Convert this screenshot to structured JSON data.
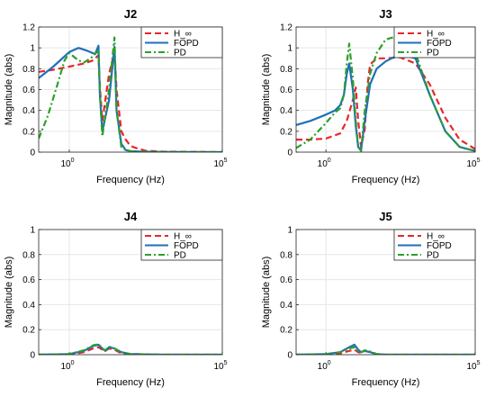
{
  "chart_data": [
    {
      "type": "line",
      "title": "J2",
      "xlabel": "Frequency  (Hz)",
      "ylabel": "Magnitude (abs)",
      "x_scale": "log",
      "xlim": [
        0.1,
        100000
      ],
      "ylim": [
        0,
        1.2
      ],
      "yticks": [
        "0",
        "0.2",
        "0.4",
        "0.6",
        "0.8",
        "1",
        "1.2"
      ],
      "xticks": [
        {
          "base": "10",
          "exp": "0",
          "value": 1
        },
        {
          "base": "10",
          "exp": "5",
          "value": 100000
        }
      ],
      "grid": true,
      "legend_position": "top-right",
      "series": [
        {
          "name": "H_∞",
          "color": "#e8262a",
          "dash": "dash",
          "x": [
            0.1,
            0.3,
            1,
            3,
            6,
            9,
            10,
            12,
            20,
            30,
            35,
            50,
            70,
            100,
            150,
            200,
            300,
            1000,
            100000
          ],
          "y": [
            0.77,
            0.79,
            0.82,
            0.85,
            0.88,
            0.93,
            0.62,
            0.3,
            0.75,
            0.96,
            0.6,
            0.2,
            0.12,
            0.06,
            0.04,
            0.03,
            0.015,
            0.005,
            0.0
          ]
        },
        {
          "name": "FOPD",
          "color": "#1f6fba",
          "dash": "solid",
          "x": [
            0.1,
            0.3,
            1,
            2,
            4,
            7,
            9,
            10,
            12,
            20,
            30,
            35,
            50,
            70,
            100,
            200,
            1000,
            100000
          ],
          "y": [
            0.71,
            0.82,
            0.96,
            1.0,
            0.97,
            0.94,
            1.02,
            0.55,
            0.2,
            0.5,
            1.01,
            0.4,
            0.08,
            0.02,
            0.01,
            0.005,
            0.001,
            0.0
          ]
        },
        {
          "name": "PD",
          "color": "#2aa02a",
          "dash": "dashdot",
          "x": [
            0.1,
            0.2,
            0.4,
            0.7,
            1,
            2,
            3,
            5,
            8,
            9,
            10,
            12,
            20,
            30,
            35,
            50,
            70,
            100,
            200,
            1000,
            100000
          ],
          "y": [
            0.13,
            0.35,
            0.64,
            0.88,
            0.95,
            0.88,
            0.86,
            0.9,
            0.96,
            0.98,
            0.55,
            0.15,
            0.6,
            1.1,
            0.4,
            0.05,
            0.02,
            0.01,
            0.003,
            0.001,
            0.0
          ]
        }
      ]
    },
    {
      "type": "line",
      "title": "J3",
      "xlabel": "Frequency  (Hz)",
      "ylabel": "Magnitude (abs)",
      "x_scale": "log",
      "xlim": [
        0.1,
        100000
      ],
      "ylim": [
        0,
        1.2
      ],
      "yticks": [
        "0",
        "0.2",
        "0.4",
        "0.6",
        "0.8",
        "1",
        "1.2"
      ],
      "xticks": [
        {
          "base": "10",
          "exp": "0",
          "value": 1
        },
        {
          "base": "10",
          "exp": "5",
          "value": 100000
        }
      ],
      "grid": true,
      "legend_position": "top-right",
      "series": [
        {
          "name": "H_∞",
          "color": "#e8262a",
          "dash": "dash",
          "x": [
            0.1,
            0.3,
            1,
            3,
            5,
            8,
            10,
            12,
            15,
            20,
            25,
            30,
            50,
            100,
            300,
            1000,
            3000,
            10000,
            30000,
            100000
          ],
          "y": [
            0.12,
            0.12,
            0.13,
            0.18,
            0.3,
            0.5,
            0.62,
            0.3,
            0.05,
            0.22,
            0.65,
            0.84,
            0.9,
            0.9,
            0.91,
            0.85,
            0.65,
            0.33,
            0.12,
            0.03
          ]
        },
        {
          "name": "FOPD",
          "color": "#1f6fba",
          "dash": "solid",
          "x": [
            0.1,
            0.3,
            1,
            2,
            3,
            4,
            5,
            6,
            8,
            10,
            12,
            15,
            20,
            30,
            50,
            100,
            300,
            1000,
            3000,
            10000,
            30000,
            100000
          ],
          "y": [
            0.26,
            0.3,
            0.36,
            0.4,
            0.45,
            0.55,
            0.75,
            0.85,
            0.6,
            0.25,
            0.05,
            0.02,
            0.3,
            0.65,
            0.8,
            0.87,
            0.94,
            0.9,
            0.55,
            0.2,
            0.05,
            0.01
          ]
        },
        {
          "name": "PD",
          "color": "#2aa02a",
          "dash": "dashdot",
          "x": [
            0.1,
            0.3,
            1,
            2,
            3,
            4,
            5,
            6,
            8,
            10,
            12,
            15,
            20,
            30,
            50,
            100,
            300,
            1000,
            3000,
            10000,
            30000,
            100000
          ],
          "y": [
            0.04,
            0.12,
            0.28,
            0.38,
            0.42,
            0.55,
            0.85,
            1.04,
            0.7,
            0.3,
            0.05,
            0.01,
            0.4,
            0.75,
            0.95,
            1.08,
            1.12,
            0.95,
            0.55,
            0.2,
            0.05,
            0.01
          ]
        }
      ]
    },
    {
      "type": "line",
      "title": "J4",
      "xlabel": "Frequency  (Hz)",
      "ylabel": "Magnitude (abs)",
      "x_scale": "log",
      "xlim": [
        0.1,
        100000
      ],
      "ylim": [
        0,
        1
      ],
      "yticks": [
        "0",
        "0.2",
        "0.4",
        "0.6",
        "0.8",
        "1"
      ],
      "xticks": [
        {
          "base": "10",
          "exp": "0",
          "value": 1
        },
        {
          "base": "10",
          "exp": "5",
          "value": 100000
        }
      ],
      "grid": true,
      "legend_position": "top-right",
      "series": [
        {
          "name": "H_∞",
          "color": "#e8262a",
          "dash": "dash",
          "x": [
            0.1,
            1,
            3,
            6,
            9,
            12,
            15,
            20,
            30,
            50,
            100,
            1000,
            100000
          ],
          "y": [
            0.0,
            0.0,
            0.02,
            0.05,
            0.06,
            0.04,
            0.03,
            0.05,
            0.04,
            0.01,
            0.005,
            0.0,
            0.0
          ]
        },
        {
          "name": "FOPD",
          "color": "#1f6fba",
          "dash": "solid",
          "x": [
            0.1,
            1,
            3,
            6,
            9,
            12,
            15,
            20,
            30,
            50,
            100,
            1000,
            100000
          ],
          "y": [
            0.0,
            0.005,
            0.03,
            0.07,
            0.08,
            0.05,
            0.03,
            0.06,
            0.05,
            0.02,
            0.005,
            0.0,
            0.0
          ]
        },
        {
          "name": "PD",
          "color": "#2aa02a",
          "dash": "dashdot",
          "x": [
            0.1,
            1,
            3,
            6,
            9,
            12,
            15,
            20,
            30,
            50,
            100,
            1000,
            100000
          ],
          "y": [
            0.0,
            0.005,
            0.035,
            0.075,
            0.085,
            0.05,
            0.035,
            0.065,
            0.05,
            0.02,
            0.005,
            0.0,
            0.0
          ]
        }
      ]
    },
    {
      "type": "line",
      "title": "J5",
      "xlabel": "Frequency  (Hz)",
      "ylabel": "Magnitude (abs)",
      "x_scale": "log",
      "xlim": [
        0.1,
        100000
      ],
      "ylim": [
        0,
        1
      ],
      "yticks": [
        "0",
        "0.2",
        "0.4",
        "0.6",
        "0.8",
        "1"
      ],
      "xticks": [
        {
          "base": "10",
          "exp": "0",
          "value": 1
        },
        {
          "base": "10",
          "exp": "5",
          "value": 100000
        }
      ],
      "grid": true,
      "legend_position": "top-right",
      "series": [
        {
          "name": "H_∞",
          "color": "#e8262a",
          "dash": "dash",
          "x": [
            0.1,
            1,
            3,
            6,
            9,
            12,
            15,
            20,
            30,
            50,
            100,
            1000,
            100000
          ],
          "y": [
            0.0,
            0.0,
            0.01,
            0.03,
            0.04,
            0.02,
            0.015,
            0.03,
            0.02,
            0.005,
            0.0,
            0.0,
            0.0
          ]
        },
        {
          "name": "FOPD",
          "color": "#1f6fba",
          "dash": "solid",
          "x": [
            0.1,
            1,
            3,
            6,
            9,
            12,
            15,
            20,
            30,
            50,
            100,
            1000,
            100000
          ],
          "y": [
            0.0,
            0.005,
            0.02,
            0.06,
            0.08,
            0.04,
            0.02,
            0.03,
            0.02,
            0.005,
            0.0,
            0.0,
            0.0
          ]
        },
        {
          "name": "PD",
          "color": "#2aa02a",
          "dash": "dashdot",
          "x": [
            0.1,
            1,
            3,
            6,
            9,
            12,
            15,
            20,
            30,
            50,
            100,
            1000,
            100000
          ],
          "y": [
            0.0,
            0.005,
            0.02,
            0.05,
            0.06,
            0.03,
            0.02,
            0.035,
            0.025,
            0.005,
            0.0,
            0.0,
            0.0
          ]
        }
      ]
    }
  ]
}
